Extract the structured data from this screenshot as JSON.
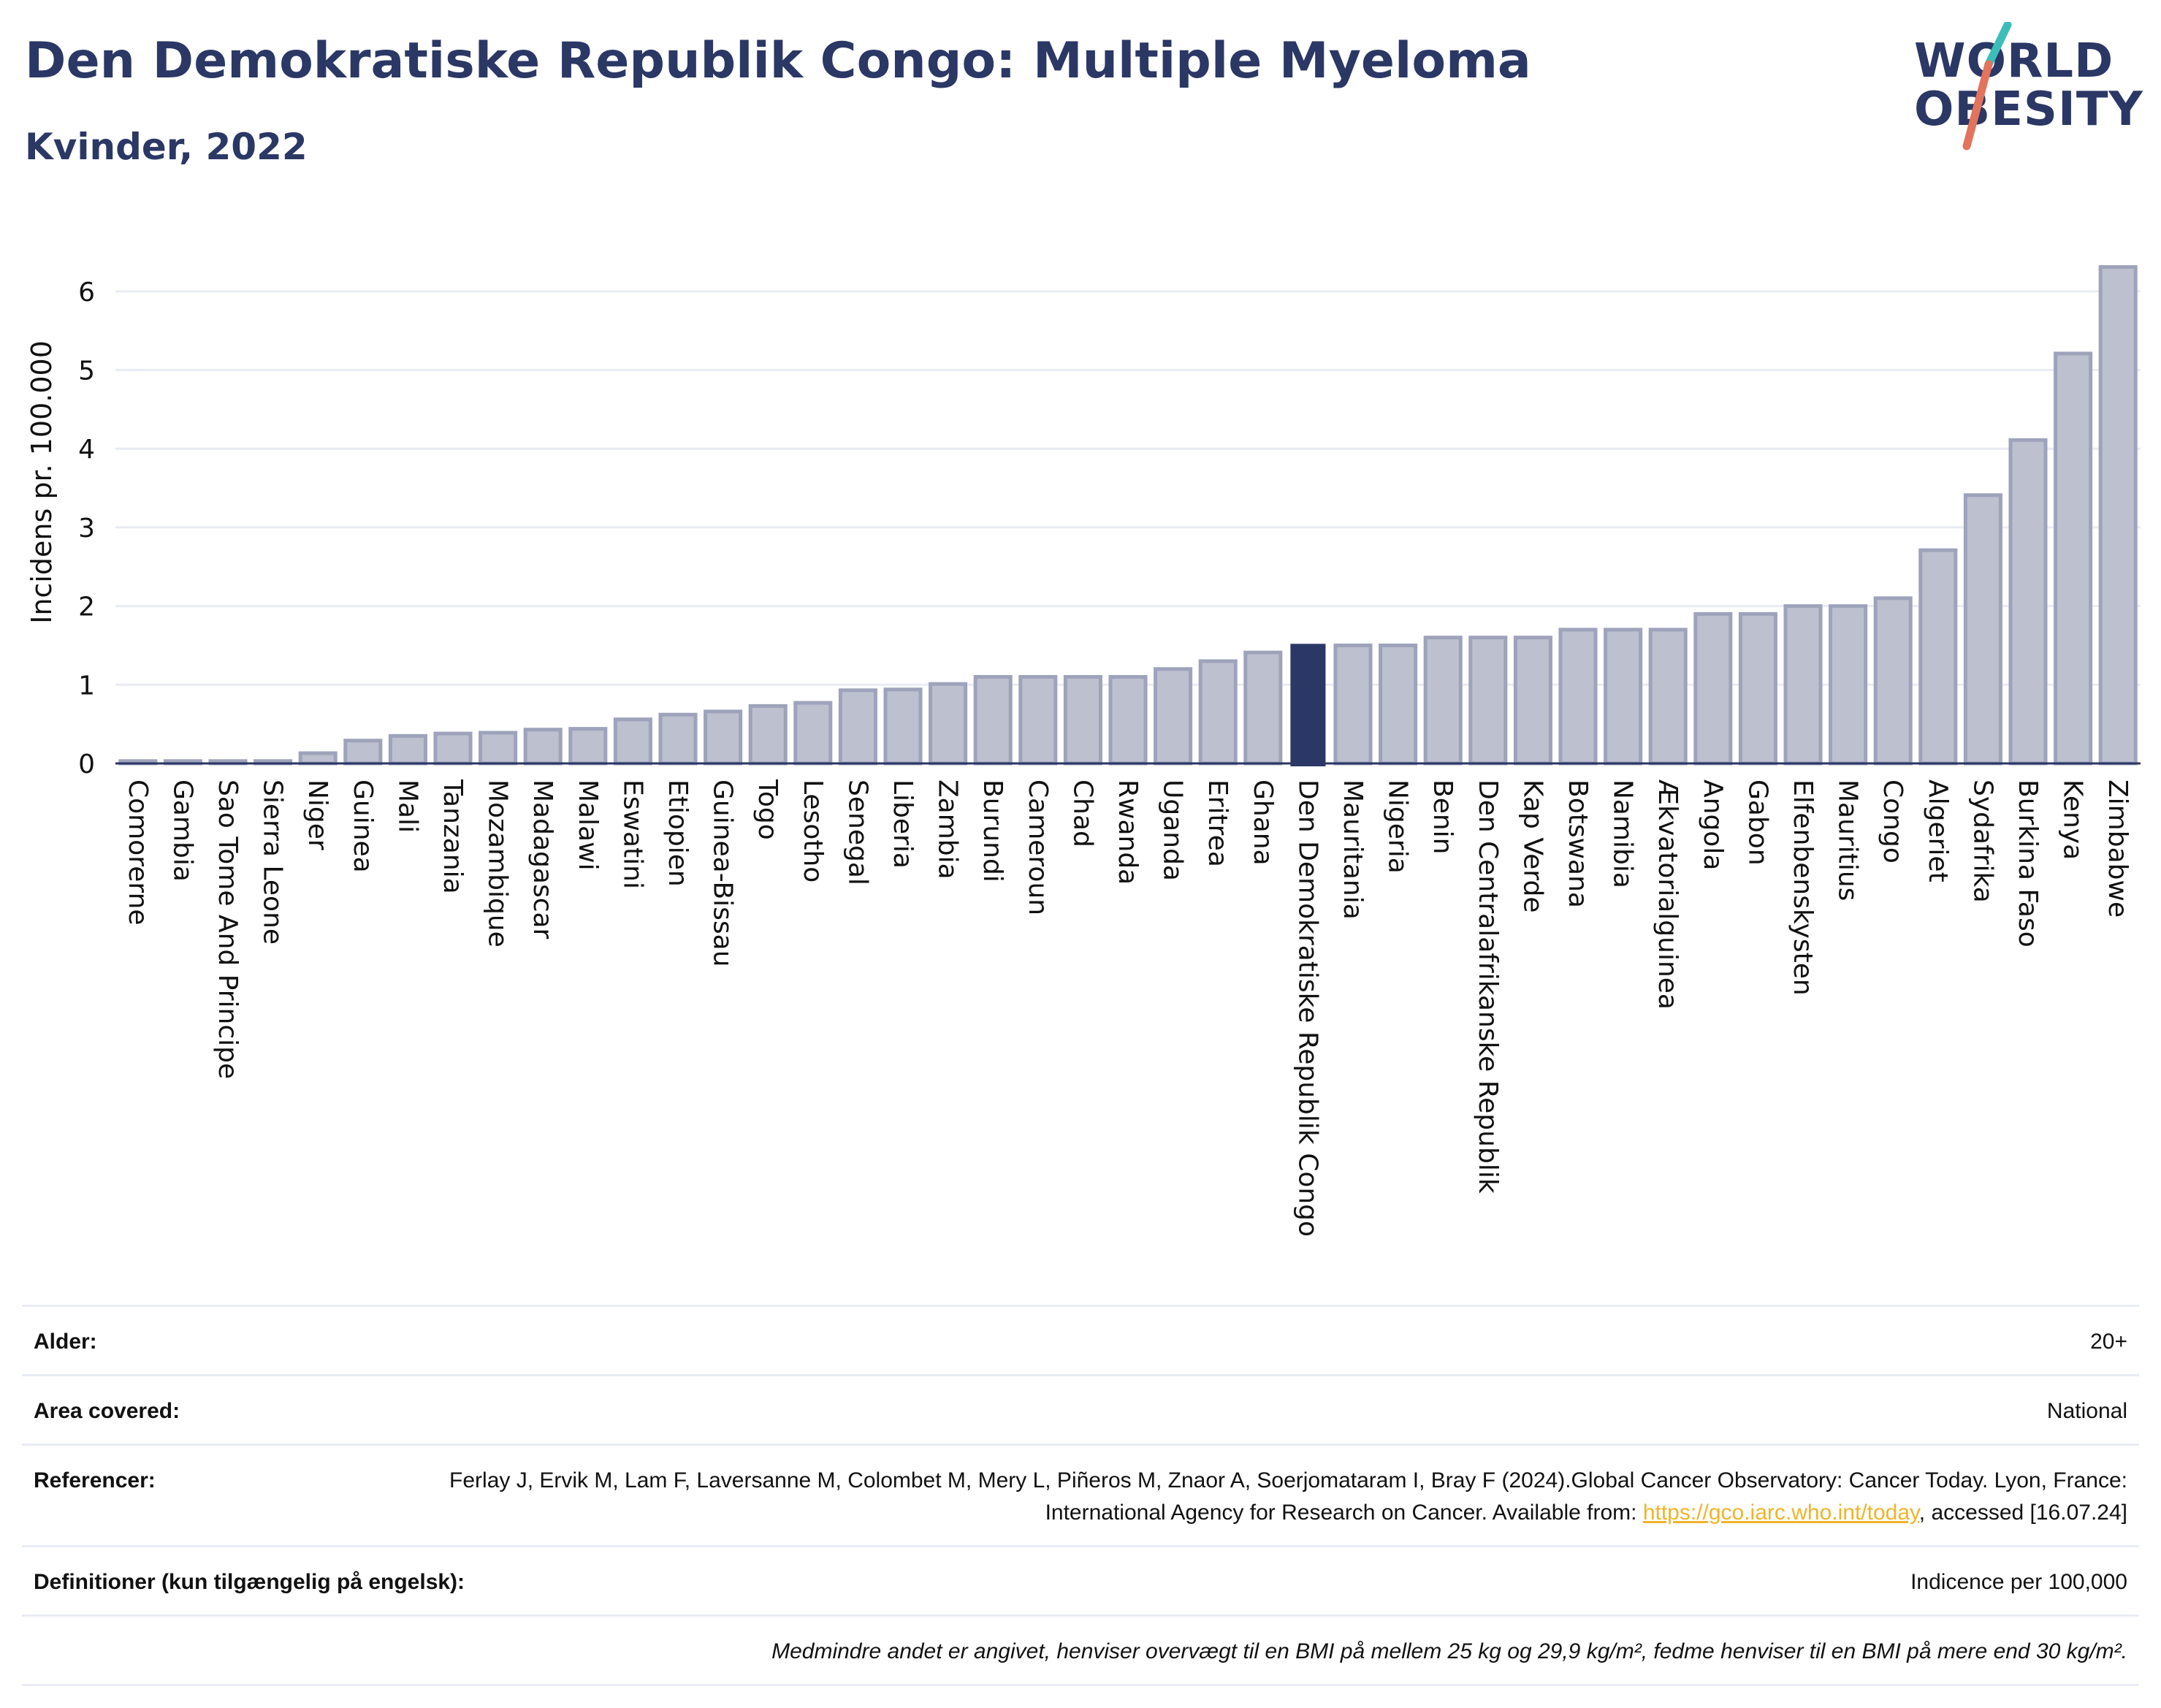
{
  "header": {
    "title": "Den Demokratiske Republik Congo: Multiple Myeloma",
    "subtitle": "Kvinder, 2022"
  },
  "logo": {
    "line1": "WORLD",
    "line2": "OBESITY"
  },
  "colors": {
    "title": "#2b3765",
    "bar": "#bcc0cf",
    "bar_stroke": "#9ea3bb",
    "highlight": "#2b3765",
    "grid": "#e9ecf4",
    "logo_slash_teal": "#3cbdb9",
    "logo_slash_coral": "#e2735d",
    "link": "#f0b429"
  },
  "chart_data": {
    "type": "bar",
    "ylabel": "Incidens pr. 100.000",
    "xlabel": "",
    "ylim": [
      0,
      6.5
    ],
    "yticks": [
      0,
      1,
      2,
      3,
      4,
      5,
      6
    ],
    "grid": true,
    "highlight": "Den Demokratiske Republik Congo",
    "categories": [
      "Comorerne",
      "Gambia",
      "Sao Tome And Principe",
      "Sierra Leone",
      "Niger",
      "Guinea",
      "Mali",
      "Tanzania",
      "Mozambique",
      "Madagascar",
      "Malawi",
      "Eswatini",
      "Etiopien",
      "Guinea-Bissau",
      "Togo",
      "Lesotho",
      "Senegal",
      "Liberia",
      "Zambia",
      "Burundi",
      "Cameroun",
      "Chad",
      "Rwanda",
      "Uganda",
      "Eritrea",
      "Ghana",
      "Den Demokratiske Republik Congo",
      "Mauritania",
      "Nigeria",
      "Benin",
      "Den Centralafrikanske Republik",
      "Kap Verde",
      "Botswana",
      "Namibia",
      "Ækvatorialguinea",
      "Angola",
      "Gabon",
      "Elfenbenskysten",
      "Mauritius",
      "Congo",
      "Algeriet",
      "Sydafrika",
      "Burkina Faso",
      "Kenya",
      "Zimbabwe"
    ],
    "values": [
      0.03,
      0.03,
      0.03,
      0.03,
      0.13,
      0.29,
      0.35,
      0.38,
      0.39,
      0.43,
      0.44,
      0.56,
      0.62,
      0.66,
      0.73,
      0.77,
      0.93,
      0.94,
      1.01,
      1.1,
      1.1,
      1.1,
      1.1,
      1.2,
      1.3,
      1.41,
      1.52,
      1.5,
      1.5,
      1.6,
      1.6,
      1.6,
      1.7,
      1.7,
      1.7,
      1.9,
      1.9,
      2.0,
      2.0,
      2.1,
      2.71,
      3.41,
      4.11,
      5.21,
      6.31
    ]
  },
  "info": {
    "rows": [
      {
        "label": "Alder:",
        "value": "20+"
      },
      {
        "label": "Area covered:",
        "value": "National"
      },
      {
        "label": "Referencer:",
        "value_pre": "Ferlay J, Ervik M, Lam F, Laversanne M, Colombet M, Mery L, Piñeros M, Znaor A, Soerjomataram I, Bray F (2024).Global Cancer Observatory: Cancer Today. Lyon, France: International Agency for Research on Cancer. Available from: ",
        "link": "https://gco.iarc.who.int/today",
        "value_post": ", accessed [16.07.24]"
      },
      {
        "label": "Definitioner (kun tilgængelig på engelsk):",
        "value": "Indicence per 100,000"
      }
    ],
    "note": "Medmindre andet er angivet, henviser overvægt til en BMI på mellem 25 kg og 29,9 kg/m², fedme henviser til en BMI på mere end 30 kg/m²."
  }
}
